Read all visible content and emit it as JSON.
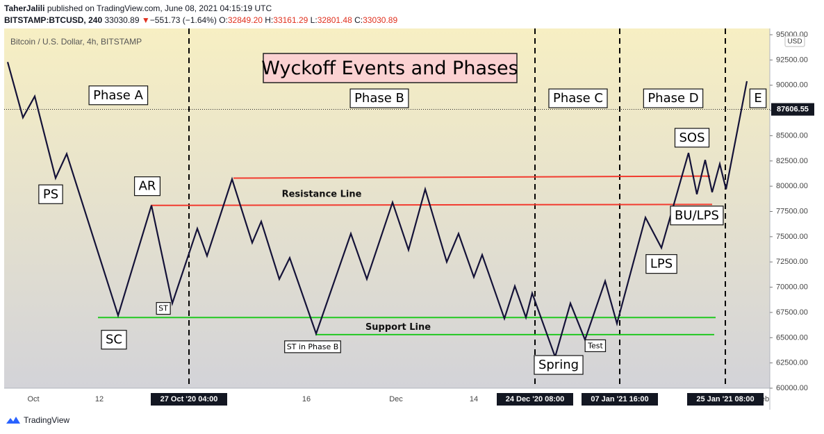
{
  "header": {
    "author": "TaherJalili",
    "published": "published on TradingView.com, June 08, 2021 04:15:19 UTC",
    "symbol": "BITSTAMP:BTCUSD, 240",
    "last": "33030.89",
    "change_arrow": "▼",
    "change": "−551.73 (−1.64%)",
    "o_label": "O:",
    "o_value": "32849.20",
    "h_label": "H:",
    "h_value": "33161.29",
    "l_label": "L:",
    "l_value": "32801.48",
    "c_label": "C:",
    "c_value": "33030.89"
  },
  "footer": {
    "brand": "TradingView"
  },
  "colors": {
    "bg_top": "#f7efc3",
    "bg_bottom": "#d3d3d8",
    "price_line": "#141238",
    "resistance": "#f23b2f",
    "support": "#20c820",
    "title_bg": "#fbd2d2"
  },
  "chart_data": {
    "type": "line",
    "title": "Wyckoff Events and Phases",
    "subtitle": "Bitcoin / U.S. Dollar, 4h, BITSTAMP",
    "currency": "USD",
    "current_price": "87606.55",
    "y_ticks": [
      "95000.00",
      "92500.00",
      "90000.00",
      "87500.00",
      "85000.00",
      "82500.00",
      "80000.00",
      "77500.00",
      "75000.00",
      "72500.00",
      "70000.00",
      "67500.00",
      "65000.00",
      "62500.00",
      "60000.00"
    ],
    "ylim": [
      60000,
      95500
    ],
    "x_ticks": [
      {
        "label": "Oct",
        "t": 48
      },
      {
        "label": "12",
        "t": 143
      },
      {
        "label": "16",
        "t": 441
      },
      {
        "label": "Dec",
        "t": 570
      },
      {
        "label": "14",
        "t": 682
      },
      {
        "label": "eb",
        "t": 1101
      }
    ],
    "x_highlight_ticks": [
      {
        "label": "27 Oct '20  04:00",
        "t": 272
      },
      {
        "label": "24 Dec '20  08:00",
        "t": 770
      },
      {
        "label": "07 Jan '21  16:00",
        "t": 892
      },
      {
        "label": "25 Jan '21  08:00",
        "t": 1044
      }
    ],
    "series": [
      {
        "t": [
          11,
          33,
          50,
          80,
          96,
          170,
          218,
          248,
          284,
          298,
          334,
          363,
          376,
          402,
          417,
          455,
          505,
          528,
          565,
          588,
          612,
          643,
          660,
          682,
          694,
          726,
          741,
          757,
          766,
          799,
          821,
          842,
          871,
          888,
          929,
          952,
          991,
          1003,
          1015,
          1025,
          1036,
          1045,
          1075
        ],
        "v": [
          92300,
          86800,
          88900,
          80800,
          83200,
          67200,
          78100,
          68400,
          75800,
          73100,
          80700,
          74400,
          76500,
          70800,
          72900,
          65400,
          75300,
          70800,
          78400,
          73700,
          79700,
          72500,
          75300,
          71000,
          73200,
          66900,
          70100,
          67000,
          69400,
          63100,
          68400,
          64800,
          70600,
          66400,
          76900,
          73900,
          83300,
          79200,
          82600,
          79400,
          82200,
          79700,
          90400
        ]
      }
    ],
    "lines": [
      {
        "name": "Resistance Line",
        "t": [
          217,
          1025
        ],
        "v": [
          78100,
          78200
        ]
      },
      {
        "name": "",
        "t": [
          336,
          1022
        ],
        "v": [
          80800,
          81000
        ]
      },
      {
        "name": "Support Line",
        "t": [
          141,
          1030
        ],
        "v": [
          67000,
          67000
        ]
      },
      {
        "name": "",
        "t": [
          454,
          1028
        ],
        "v": [
          65300,
          65300
        ]
      }
    ],
    "phase_dividers": [
      272,
      770,
      892,
      1044
    ],
    "phases": [
      {
        "label": "Phase A",
        "t": 170,
        "v": 89000
      },
      {
        "label": "Phase B",
        "t": 546,
        "v": 88700
      },
      {
        "label": "Phase C",
        "t": 832,
        "v": 88700
      },
      {
        "label": "Phase D",
        "t": 969,
        "v": 88700
      },
      {
        "label": "E",
        "t": 1091,
        "v": 88700
      }
    ],
    "events": [
      {
        "label": "PS",
        "t": 73,
        "v": 79200,
        "size": "big"
      },
      {
        "label": "AR",
        "t": 212,
        "v": 80000,
        "size": "big"
      },
      {
        "label": "ST",
        "t": 235,
        "v": 67900,
        "size": "small"
      },
      {
        "label": "SC",
        "t": 164,
        "v": 64800,
        "size": "big"
      },
      {
        "label": "ST in Phase B",
        "t": 450,
        "v": 64100,
        "size": "small"
      },
      {
        "label": "Spring",
        "t": 804,
        "v": 62300,
        "size": "big"
      },
      {
        "label": "Test",
        "t": 857,
        "v": 64200,
        "size": "small"
      },
      {
        "label": "LPS",
        "t": 952,
        "v": 72300,
        "size": "big"
      },
      {
        "label": "BU/LPS",
        "t": 1003,
        "v": 77100,
        "size": "big"
      },
      {
        "label": "SOS",
        "t": 996,
        "v": 84800,
        "size": "big"
      }
    ],
    "line_labels": [
      {
        "label": "Resistance Line",
        "t": 463,
        "v": 79200
      },
      {
        "label": "Support Line",
        "t": 573,
        "v": 66000
      }
    ]
  }
}
